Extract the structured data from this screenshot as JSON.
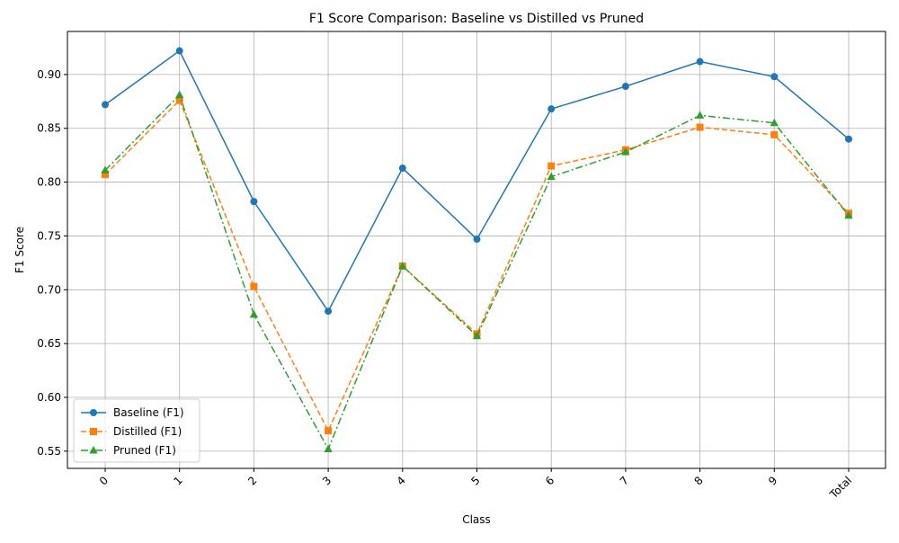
{
  "chart_data": {
    "type": "line",
    "title": "F1 Score Comparison: Baseline vs Distilled vs Pruned",
    "xlabel": "Class",
    "ylabel": "F1 Score",
    "categories": [
      "0",
      "1",
      "2",
      "3",
      "4",
      "5",
      "6",
      "7",
      "8",
      "9",
      "Total"
    ],
    "ylim": [
      0.534,
      0.94
    ],
    "yticks": [
      "0.55",
      "0.60",
      "0.65",
      "0.70",
      "0.75",
      "0.80",
      "0.85",
      "0.90"
    ],
    "grid": true,
    "legend_position": "lower-left",
    "series": [
      {
        "name": "Baseline (F1)",
        "color": "#1f77b4",
        "linestyle": "solid",
        "marker": "circle",
        "values": [
          0.872,
          0.922,
          0.782,
          0.68,
          0.813,
          0.747,
          0.868,
          0.889,
          0.912,
          0.898,
          0.84
        ]
      },
      {
        "name": "Distilled (F1)",
        "color": "#ff7f0e",
        "linestyle": "dashed",
        "marker": "square",
        "values": [
          0.807,
          0.876,
          0.703,
          0.569,
          0.722,
          0.659,
          0.815,
          0.83,
          0.851,
          0.844,
          0.771
        ]
      },
      {
        "name": "Pruned (F1)",
        "color": "#2ca02c",
        "linestyle": "dashdot",
        "marker": "triangle",
        "values": [
          0.811,
          0.881,
          0.677,
          0.552,
          0.722,
          0.657,
          0.805,
          0.828,
          0.862,
          0.855,
          0.769
        ]
      }
    ]
  }
}
